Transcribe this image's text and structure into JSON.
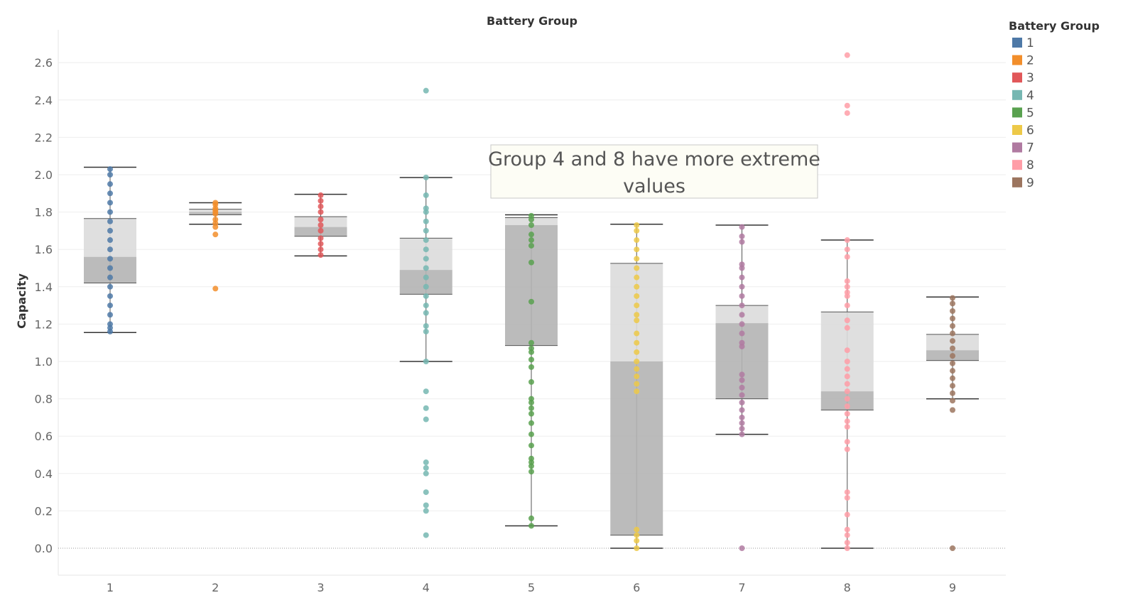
{
  "chart_data": {
    "type": "box",
    "title": "Battery Group",
    "xlabel": "",
    "ylabel": "Capacity",
    "categories": [
      "1",
      "2",
      "3",
      "4",
      "5",
      "6",
      "7",
      "8",
      "9"
    ],
    "yticks": [
      "0.0",
      "0.2",
      "0.4",
      "0.6",
      "0.8",
      "1.0",
      "1.2",
      "1.4",
      "1.6",
      "1.8",
      "2.0",
      "2.2",
      "2.4",
      "2.6"
    ],
    "ylim": [
      -0.15,
      2.85
    ],
    "grid": true,
    "legend": {
      "title": "Battery Group",
      "position": "top-right",
      "items": [
        {
          "label": "1",
          "color": "#4e79a7"
        },
        {
          "label": "2",
          "color": "#f28e2b"
        },
        {
          "label": "3",
          "color": "#e15759"
        },
        {
          "label": "4",
          "color": "#76b7b2"
        },
        {
          "label": "5",
          "color": "#59a14f"
        },
        {
          "label": "6",
          "color": "#edc948"
        },
        {
          "label": "7",
          "color": "#b07aa1"
        },
        {
          "label": "8",
          "color": "#ff9da7"
        },
        {
          "label": "9",
          "color": "#9c755f"
        }
      ]
    },
    "annotation": {
      "line1": "Group 4 and 8 have more extreme",
      "line2": "values"
    },
    "boxes": [
      {
        "group": "1",
        "color": "#4e79a7",
        "whisker_low": 1.155,
        "q1": 1.42,
        "median": 1.56,
        "q3": 1.765,
        "whisker_high": 2.04,
        "points": [
          1.16,
          1.18,
          1.2,
          1.25,
          1.3,
          1.35,
          1.4,
          1.45,
          1.5,
          1.55,
          1.6,
          1.65,
          1.7,
          1.75,
          1.8,
          1.85,
          1.9,
          1.95,
          2.0,
          2.03
        ]
      },
      {
        "group": "2",
        "color": "#f28e2b",
        "whisker_low": 1.735,
        "q1": 1.785,
        "median": 1.8,
        "q3": 1.815,
        "whisker_high": 1.85,
        "points": [
          1.39,
          1.68,
          1.72,
          1.74,
          1.76,
          1.79,
          1.8,
          1.81,
          1.82,
          1.84,
          1.85
        ]
      },
      {
        "group": "3",
        "color": "#e15759",
        "whisker_low": 1.565,
        "q1": 1.67,
        "median": 1.72,
        "q3": 1.775,
        "whisker_high": 1.895,
        "points": [
          1.57,
          1.6,
          1.63,
          1.66,
          1.7,
          1.73,
          1.76,
          1.8,
          1.83,
          1.86,
          1.89
        ]
      },
      {
        "group": "4",
        "color": "#76b7b2",
        "whisker_low": 1.0,
        "q1": 1.36,
        "median": 1.49,
        "q3": 1.66,
        "whisker_high": 1.985,
        "points": [
          0.07,
          0.2,
          0.23,
          0.3,
          0.4,
          0.43,
          0.46,
          0.69,
          0.75,
          0.84,
          1.0,
          1.16,
          1.19,
          1.26,
          1.3,
          1.35,
          1.4,
          1.45,
          1.5,
          1.55,
          1.6,
          1.65,
          1.7,
          1.75,
          1.8,
          1.82,
          1.89,
          1.985,
          2.45
        ]
      },
      {
        "group": "5",
        "color": "#59a14f",
        "whisker_low": 0.12,
        "q1": 1.085,
        "median": 1.73,
        "q3": 1.77,
        "whisker_high": 1.785,
        "points": [
          0.12,
          0.16,
          0.41,
          0.44,
          0.46,
          0.48,
          0.55,
          0.61,
          0.67,
          0.72,
          0.75,
          0.78,
          0.8,
          0.89,
          0.97,
          1.01,
          1.05,
          1.07,
          1.1,
          1.32,
          1.53,
          1.62,
          1.65,
          1.68,
          1.73,
          1.76,
          1.78
        ]
      },
      {
        "group": "6",
        "color": "#edc948",
        "whisker_low": 0.0,
        "q1": 0.07,
        "median": 1.0,
        "q3": 1.525,
        "whisker_high": 1.735,
        "points": [
          0.0,
          0.04,
          0.07,
          0.1,
          0.84,
          0.88,
          0.92,
          0.96,
          1.0,
          1.05,
          1.1,
          1.15,
          1.22,
          1.25,
          1.3,
          1.35,
          1.4,
          1.45,
          1.5,
          1.55,
          1.6,
          1.65,
          1.7,
          1.73
        ]
      },
      {
        "group": "7",
        "color": "#b07aa1",
        "whisker_low": 0.61,
        "q1": 0.8,
        "median": 1.205,
        "q3": 1.3,
        "whisker_high": 1.73,
        "points": [
          0.0,
          0.61,
          0.64,
          0.67,
          0.7,
          0.74,
          0.78,
          0.82,
          0.86,
          0.9,
          0.93,
          1.08,
          1.1,
          1.15,
          1.2,
          1.25,
          1.3,
          1.35,
          1.4,
          1.45,
          1.5,
          1.52,
          1.64,
          1.67,
          1.72
        ]
      },
      {
        "group": "8",
        "color": "#ff9da7",
        "whisker_low": 0.0,
        "q1": 0.74,
        "median": 0.84,
        "q3": 1.265,
        "whisker_high": 1.65,
        "points": [
          0.0,
          0.03,
          0.07,
          0.1,
          0.18,
          0.27,
          0.3,
          0.53,
          0.57,
          0.65,
          0.68,
          0.72,
          0.76,
          0.8,
          0.84,
          0.88,
          0.92,
          0.96,
          1.0,
          1.06,
          1.18,
          1.22,
          1.3,
          1.35,
          1.37,
          1.4,
          1.43,
          1.56,
          1.6,
          1.65,
          2.33,
          2.37,
          2.64
        ]
      },
      {
        "group": "9",
        "color": "#9c755f",
        "whisker_low": 0.8,
        "q1": 1.005,
        "median": 1.06,
        "q3": 1.145,
        "whisker_high": 1.345,
        "points": [
          0.0,
          0.74,
          0.79,
          0.83,
          0.87,
          0.91,
          0.95,
          0.99,
          1.03,
          1.07,
          1.11,
          1.15,
          1.19,
          1.23,
          1.27,
          1.31,
          1.34
        ]
      }
    ]
  }
}
